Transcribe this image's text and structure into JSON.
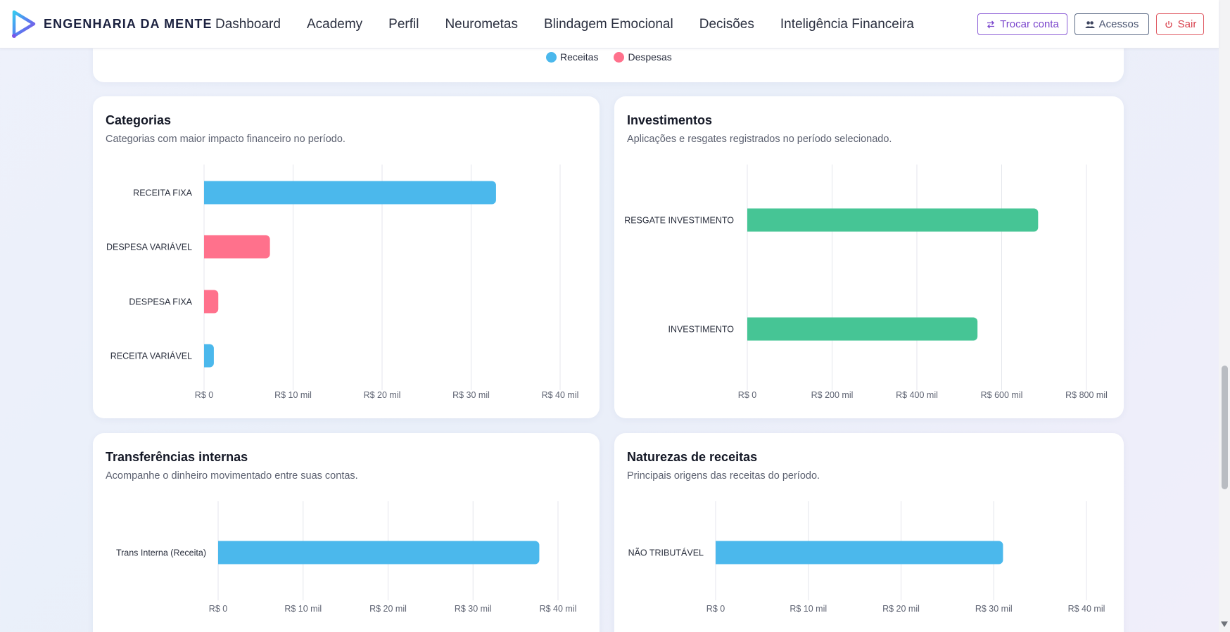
{
  "header": {
    "brand": "ENGENHARIA DA MENTE",
    "nav": [
      {
        "label": "Dashboard"
      },
      {
        "label": "Academy"
      },
      {
        "label": "Perfil"
      },
      {
        "label": "Neurometas"
      },
      {
        "label": "Blindagem Emocional"
      },
      {
        "label": "Decisões"
      },
      {
        "label": "Inteligência Financeira"
      }
    ],
    "buttons": {
      "trocar": "Trocar conta",
      "acessos": "Acessos",
      "sair": "Sair"
    }
  },
  "colors": {
    "receitas": "#4bb8ec",
    "despesas": "#ff718c",
    "investimentos": "#46c595"
  },
  "top_legend": {
    "receitas": "Receitas",
    "despesas": "Despesas"
  },
  "cards": {
    "categorias": {
      "title": "Categorias",
      "subtitle": "Categorias com maior impacto financeiro no período."
    },
    "investimentos": {
      "title": "Investimentos",
      "subtitle": "Aplicações e resgates registrados no período selecionado."
    },
    "transferencias": {
      "title": "Transferências internas",
      "subtitle": "Acompanhe o dinheiro movimentado entre suas contas."
    },
    "naturezas": {
      "title": "Naturezas de receitas",
      "subtitle": "Principais origens das receitas do período."
    }
  },
  "chart_data": [
    {
      "type": "bar",
      "orientation": "horizontal",
      "title": "Categorias",
      "categories": [
        "RECEITA FIXA",
        "DESPESA VARIÁVEL",
        "DESPESA FIXA",
        "RECEITA VARIÁVEL"
      ],
      "values": [
        32800,
        7400,
        1600,
        1100
      ],
      "bar_colors": [
        "receitas",
        "despesas",
        "despesas",
        "receitas"
      ],
      "xlim": [
        0,
        40000
      ],
      "ticks": [
        0,
        10000,
        20000,
        30000,
        40000
      ],
      "tick_labels": [
        "R$ 0",
        "R$ 10 mil",
        "R$ 20 mil",
        "R$ 30 mil",
        "R$ 40 mil"
      ],
      "grid": true
    },
    {
      "type": "bar",
      "orientation": "horizontal",
      "title": "Investimentos",
      "categories": [
        "RESGATE INVESTIMENTO",
        "INVESTIMENTO"
      ],
      "values": [
        686000,
        543000
      ],
      "bar_colors": [
        "investimentos",
        "investimentos"
      ],
      "xlim": [
        0,
        800000
      ],
      "ticks": [
        0,
        200000,
        400000,
        600000,
        800000
      ],
      "tick_labels": [
        "R$ 0",
        "R$ 200 mil",
        "R$ 400 mil",
        "R$ 600 mil",
        "R$ 800 mil"
      ],
      "grid": true
    },
    {
      "type": "bar",
      "orientation": "horizontal",
      "title": "Transferências internas",
      "categories": [
        "Trans Interna (Receita)"
      ],
      "values": [
        37800
      ],
      "bar_colors": [
        "receitas"
      ],
      "xlim": [
        0,
        40000
      ],
      "ticks": [
        0,
        10000,
        20000,
        30000,
        40000
      ],
      "tick_labels": [
        "R$ 0",
        "R$ 10 mil",
        "R$ 20 mil",
        "R$ 30 mil",
        "R$ 40 mil"
      ],
      "grid": true
    },
    {
      "type": "bar",
      "orientation": "horizontal",
      "title": "Naturezas de receitas",
      "categories": [
        "NÃO TRIBUTÁVEL"
      ],
      "values": [
        31000
      ],
      "bar_colors": [
        "receitas"
      ],
      "xlim": [
        0,
        40000
      ],
      "ticks": [
        0,
        10000,
        20000,
        30000,
        40000
      ],
      "tick_labels": [
        "R$ 0",
        "R$ 10 mil",
        "R$ 20 mil",
        "R$ 30 mil",
        "R$ 40 mil"
      ],
      "grid": true
    }
  ]
}
